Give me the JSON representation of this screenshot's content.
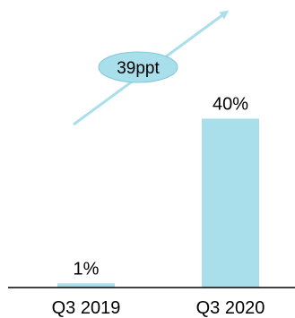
{
  "chart_data": {
    "type": "bar",
    "categories": [
      "Q3 2019",
      "Q3 2020"
    ],
    "values": [
      1,
      40
    ],
    "value_labels": [
      "1%",
      "40%"
    ],
    "ylim": [
      0,
      42
    ],
    "grid": false,
    "annotation": {
      "text": "39ppt",
      "type": "increase-arrow"
    },
    "colors": {
      "bar": "#a9dfeb",
      "arrow": "#a9dfeb",
      "badge": "#a9dfeb",
      "axis": "#000000"
    }
  }
}
